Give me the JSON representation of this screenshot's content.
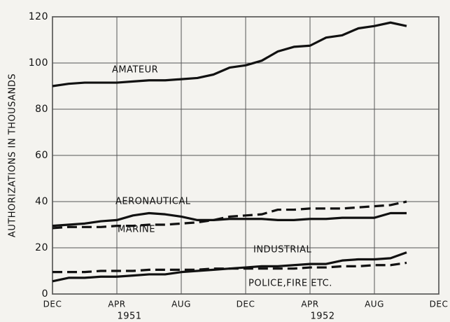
{
  "chart_data": {
    "type": "line",
    "ylabel": "AUTHORIZATIONS IN THOUSANDS",
    "categories": [
      "DEC",
      null,
      null,
      null,
      "APR",
      null,
      null,
      null,
      "AUG",
      null,
      null,
      null,
      "DEC",
      null,
      null,
      null,
      "APR",
      null,
      null,
      null,
      "AUG",
      null,
      null,
      null,
      "DEC"
    ],
    "year_labels": [
      "1951",
      "1952"
    ],
    "ylim": [
      0,
      120
    ],
    "yticks": [
      0,
      20,
      40,
      60,
      80,
      100,
      120
    ],
    "grid": true,
    "series": [
      {
        "name": "AMATEUR",
        "color": "#111111",
        "dash": false,
        "values": [
          90,
          91,
          91.5,
          91.5,
          91.5,
          92,
          92.5,
          92.5,
          93,
          93.5,
          95,
          98,
          99,
          101,
          105,
          107,
          107.5,
          111,
          112,
          115,
          116,
          117.5,
          116,
          null,
          null
        ]
      },
      {
        "name": "AERONAUTICAL",
        "color": "#111111",
        "dash": false,
        "values": [
          29.5,
          30,
          30.5,
          31.5,
          32,
          34,
          35,
          34.5,
          33.5,
          32,
          32,
          32.5,
          32.5,
          32.5,
          32,
          32,
          32.5,
          32.5,
          33,
          33,
          33,
          35,
          35,
          null,
          null
        ]
      },
      {
        "name": "MARINE",
        "color": "#111111",
        "dash": true,
        "values": [
          28.5,
          29,
          29,
          29,
          29.5,
          29.5,
          30,
          30,
          30.5,
          31,
          32,
          33.5,
          34,
          34.5,
          36.5,
          36.5,
          37,
          37,
          37,
          37.5,
          38,
          38.5,
          40,
          null,
          null
        ]
      },
      {
        "name": "INDUSTRIAL",
        "color": "#111111",
        "dash": false,
        "values": [
          5.5,
          7,
          7,
          7.5,
          7.5,
          8,
          8.5,
          8.5,
          9.5,
          10,
          10.5,
          11,
          11.5,
          12,
          12,
          12.5,
          13,
          13,
          14.5,
          15,
          15,
          15.5,
          18,
          null,
          null
        ]
      },
      {
        "name": "POLICE,FIRE ETC.",
        "color": "#111111",
        "dash": true,
        "values": [
          9.5,
          9.5,
          9.5,
          10,
          10,
          10,
          10.5,
          10.5,
          10.5,
          10.5,
          11,
          11,
          11,
          11,
          11,
          11,
          11.5,
          11.5,
          12,
          12,
          12.5,
          12.5,
          13.5,
          null,
          null
        ]
      }
    ]
  }
}
